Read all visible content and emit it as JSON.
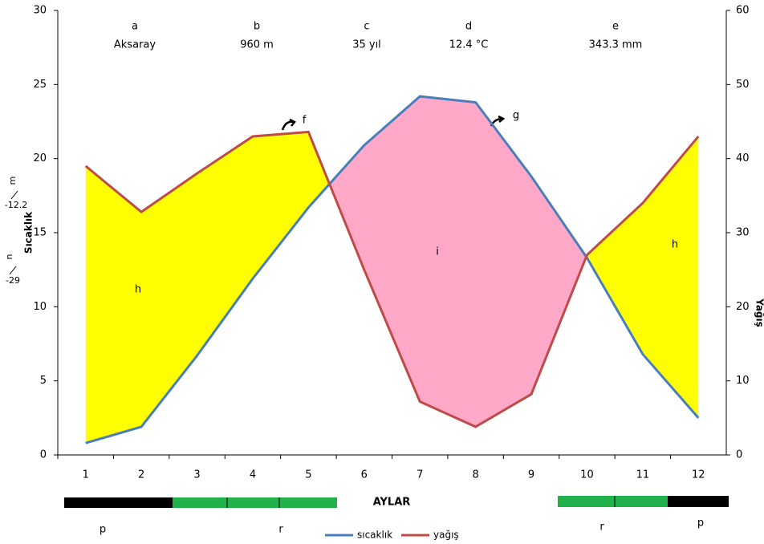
{
  "chart_data": {
    "type": "line",
    "header": [
      {
        "letter": "a",
        "text": "Aksaray"
      },
      {
        "letter": "b",
        "text": "960 m"
      },
      {
        "letter": "c",
        "text": "35 yıl"
      },
      {
        "letter": "d",
        "text": "12.4 °C"
      },
      {
        "letter": "e",
        "text": "343.3 mm"
      }
    ],
    "annotations": [
      "f",
      "g",
      "h",
      "i",
      "h",
      "m",
      "-12.2",
      "n",
      "-29",
      "p",
      "r",
      "r",
      "p"
    ],
    "xlabel": "AYLAR",
    "ylabel": "Sıcaklık",
    "y2label": "Yağış",
    "categories": [
      "1",
      "2",
      "3",
      "4",
      "5",
      "6",
      "7",
      "8",
      "9",
      "10",
      "11",
      "12"
    ],
    "series": [
      {
        "name": "sıcaklık",
        "color": "#4a7ebb",
        "values": [
          0.8,
          1.9,
          6.7,
          11.9,
          16.7,
          20.9,
          24.2,
          23.8,
          18.8,
          13.3,
          6.8,
          2.5
        ]
      },
      {
        "name": "yağış",
        "color": "#be4b48",
        "axis": "y2",
        "values": [
          39,
          32.8,
          38,
          43,
          43.6,
          25,
          7.2,
          3.8,
          8.2,
          27,
          34,
          43
        ]
      }
    ],
    "ylim": [
      0,
      30
    ],
    "yticks": [
      0,
      5,
      10,
      15,
      20,
      25,
      30
    ],
    "y2lim": [
      0,
      60
    ],
    "y2ticks": [
      0,
      10,
      20,
      30,
      40,
      50,
      60
    ],
    "fill_colors": {
      "dry": "#ffa8c8",
      "humid": "#ffff00"
    }
  }
}
